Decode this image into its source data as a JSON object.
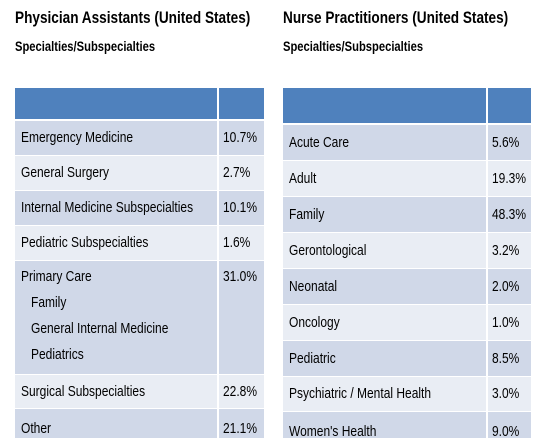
{
  "left": {
    "title": "Physician Assistants (United States)",
    "subtitle": "Specialties/Subspecialties",
    "rows": [
      [
        "Emergency Medicine",
        "10.7%"
      ],
      [
        "General Surgery",
        "2.7%"
      ],
      [
        "Internal Medicine Subspecialties",
        "10.1%"
      ],
      [
        "Pediatric Subspecialties",
        "1.6%"
      ],
      [
        "Primary Care",
        "31.0%"
      ],
      [
        "Surgical Subspecialties",
        "22.8%"
      ],
      [
        "Other",
        "21.1%"
      ]
    ],
    "subitems": [
      "Family",
      "General Internal Medicine",
      "Pediatrics"
    ]
  },
  "right": {
    "title": "Nurse Practitioners (United States)",
    "subtitle": "Specialties/Subspecialties",
    "rows": [
      [
        "Acute Care",
        "5.6%"
      ],
      [
        "Adult",
        "19.3%"
      ],
      [
        "Family",
        "48.3%"
      ],
      [
        "Gerontological",
        "3.2%"
      ],
      [
        "Neonatal",
        "2.0%"
      ],
      [
        "Oncology",
        "1.0%"
      ],
      [
        "Pediatric",
        "8.5%"
      ],
      [
        "Psychiatric / Mental Health",
        "3.0%"
      ],
      [
        "Women's Health",
        "9.0%"
      ]
    ]
  }
}
